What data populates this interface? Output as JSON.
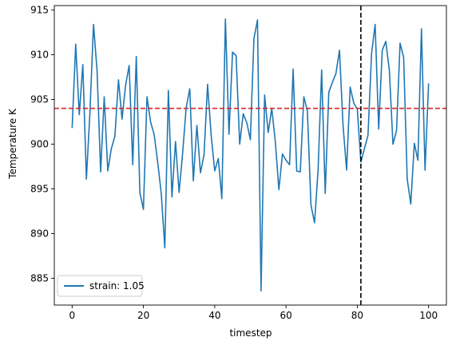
{
  "chart_data": {
    "type": "line",
    "title": "",
    "xlabel": "timestep",
    "ylabel": "Temperature K",
    "xlim": [
      -5,
      105
    ],
    "ylim": [
      882,
      915.5
    ],
    "grid": false,
    "legend_position": "lower-left",
    "xticks": [
      0,
      20,
      40,
      60,
      80,
      100
    ],
    "yticks": [
      885,
      890,
      895,
      900,
      905,
      910,
      915
    ],
    "reference_lines": [
      {
        "orientation": "horizontal",
        "value": 904,
        "color": "#d62728",
        "style": "dashed"
      },
      {
        "orientation": "vertical",
        "value": 81,
        "color": "#000000",
        "style": "dashed"
      }
    ],
    "series": [
      {
        "name": "strain: 1.05",
        "color": "#1f77b4",
        "x": [
          0,
          1,
          2,
          3,
          4,
          5,
          6,
          7,
          8,
          9,
          10,
          11,
          12,
          13,
          14,
          15,
          16,
          17,
          18,
          19,
          20,
          21,
          22,
          23,
          24,
          25,
          26,
          27,
          28,
          29,
          30,
          31,
          32,
          33,
          34,
          35,
          36,
          37,
          38,
          39,
          40,
          41,
          42,
          43,
          44,
          45,
          46,
          47,
          48,
          49,
          50,
          51,
          52,
          53,
          54,
          55,
          56,
          57,
          58,
          59,
          60,
          61,
          62,
          63,
          64,
          65,
          66,
          67,
          68,
          69,
          70,
          71,
          72,
          73,
          74,
          75,
          76,
          77,
          78,
          79,
          80,
          81,
          82,
          83,
          84,
          85,
          86,
          87,
          88,
          89,
          90,
          91,
          92,
          93,
          94,
          95,
          96,
          97,
          98,
          99,
          100
        ],
        "y": [
          901.8,
          911.2,
          903.3,
          908.9,
          896.1,
          903.6,
          913.4,
          908.2,
          896.9,
          905.3,
          897.0,
          899.5,
          900.9,
          907.2,
          902.8,
          906.6,
          908.8,
          897.7,
          909.8,
          894.6,
          892.7,
          905.3,
          902.5,
          901.1,
          898.0,
          894.5,
          888.4,
          906.0,
          894.1,
          900.3,
          894.6,
          899.0,
          904.1,
          906.2,
          895.9,
          902.1,
          896.8,
          898.8,
          906.7,
          901.0,
          897.0,
          898.4,
          893.9,
          914.0,
          901.1,
          910.3,
          909.9,
          900.0,
          903.4,
          902.4,
          900.5,
          911.8,
          913.9,
          883.6,
          905.5,
          901.3,
          904.0,
          900.3,
          894.9,
          898.9,
          898.2,
          897.7,
          908.4,
          897.0,
          896.9,
          905.3,
          903.7,
          893.2,
          891.2,
          897.1,
          908.3,
          894.5,
          905.8,
          906.9,
          907.9,
          910.5,
          902.1,
          897.1,
          906.4,
          904.6,
          903.9,
          898.0,
          899.5,
          901.0,
          910.1,
          913.4,
          901.7,
          910.5,
          911.5,
          908.2,
          900.0,
          901.5,
          911.3,
          909.7,
          896.1,
          893.3,
          900.1,
          898.2,
          912.9,
          897.1,
          906.8
        ]
      }
    ]
  }
}
